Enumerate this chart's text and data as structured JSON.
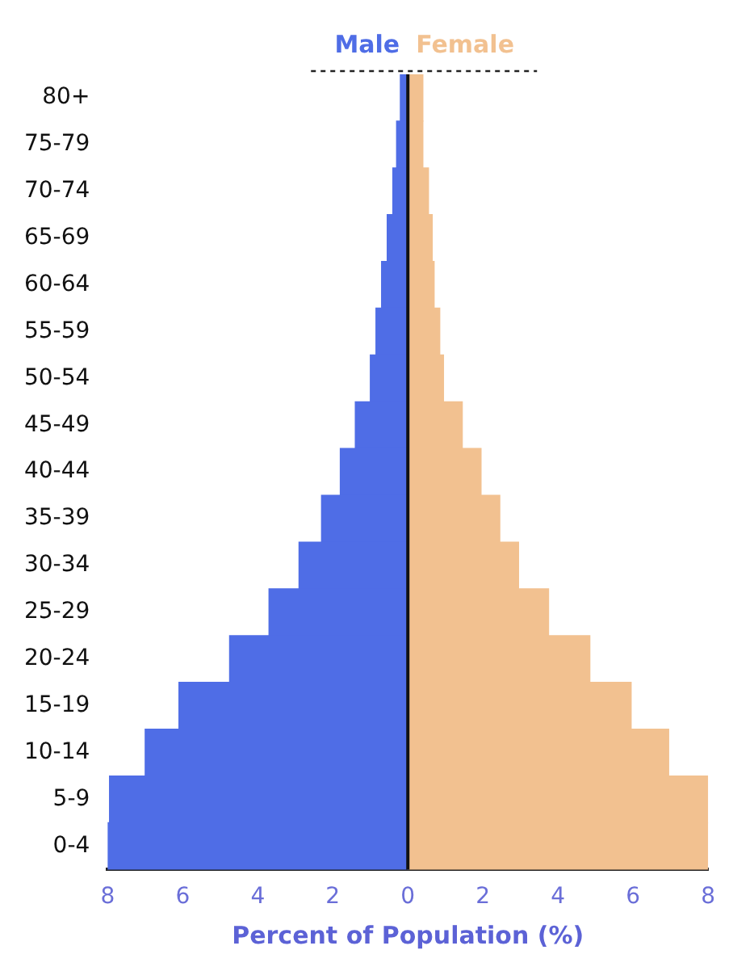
{
  "chart_data": {
    "type": "bar",
    "orientation": "horizontal",
    "stacked": true,
    "xlabel": "Percent of Population (%)",
    "categories": [
      "80+",
      "75-79",
      "70-74",
      "65-69",
      "60-64",
      "55-59",
      "50-54",
      "45-49",
      "40-44",
      "35-39",
      "30-34",
      "25-29",
      "20-24",
      "15-19",
      "10-14",
      "5-9",
      "0-4"
    ],
    "series": [
      {
        "name": "Male",
        "color": "#4f6de6",
        "values": [
          -0.2,
          -0.3,
          -0.4,
          -0.55,
          -0.7,
          -0.85,
          -1.0,
          -1.4,
          -1.8,
          -2.3,
          -2.9,
          -3.7,
          -4.75,
          -6.1,
          -7.0,
          -7.95,
          -8.0
        ]
      },
      {
        "name": "Female",
        "color": "#f2c190",
        "values": [
          0.4,
          0.4,
          0.55,
          0.65,
          0.7,
          0.85,
          0.95,
          1.45,
          1.95,
          2.45,
          2.95,
          3.75,
          4.85,
          5.95,
          6.95,
          8.0,
          8.0
        ]
      }
    ],
    "xlim": [
      -8,
      8
    ],
    "xticks": [
      {
        "value": -8,
        "label": "8"
      },
      {
        "value": -6,
        "label": "6"
      },
      {
        "value": -4,
        "label": "4"
      },
      {
        "value": -2,
        "label": "2"
      },
      0,
      2,
      4,
      6,
      8
    ],
    "ref_lines": [
      {
        "axis": "x",
        "value": 0,
        "color": "#111111"
      }
    ],
    "grid": false,
    "legend": "top"
  }
}
